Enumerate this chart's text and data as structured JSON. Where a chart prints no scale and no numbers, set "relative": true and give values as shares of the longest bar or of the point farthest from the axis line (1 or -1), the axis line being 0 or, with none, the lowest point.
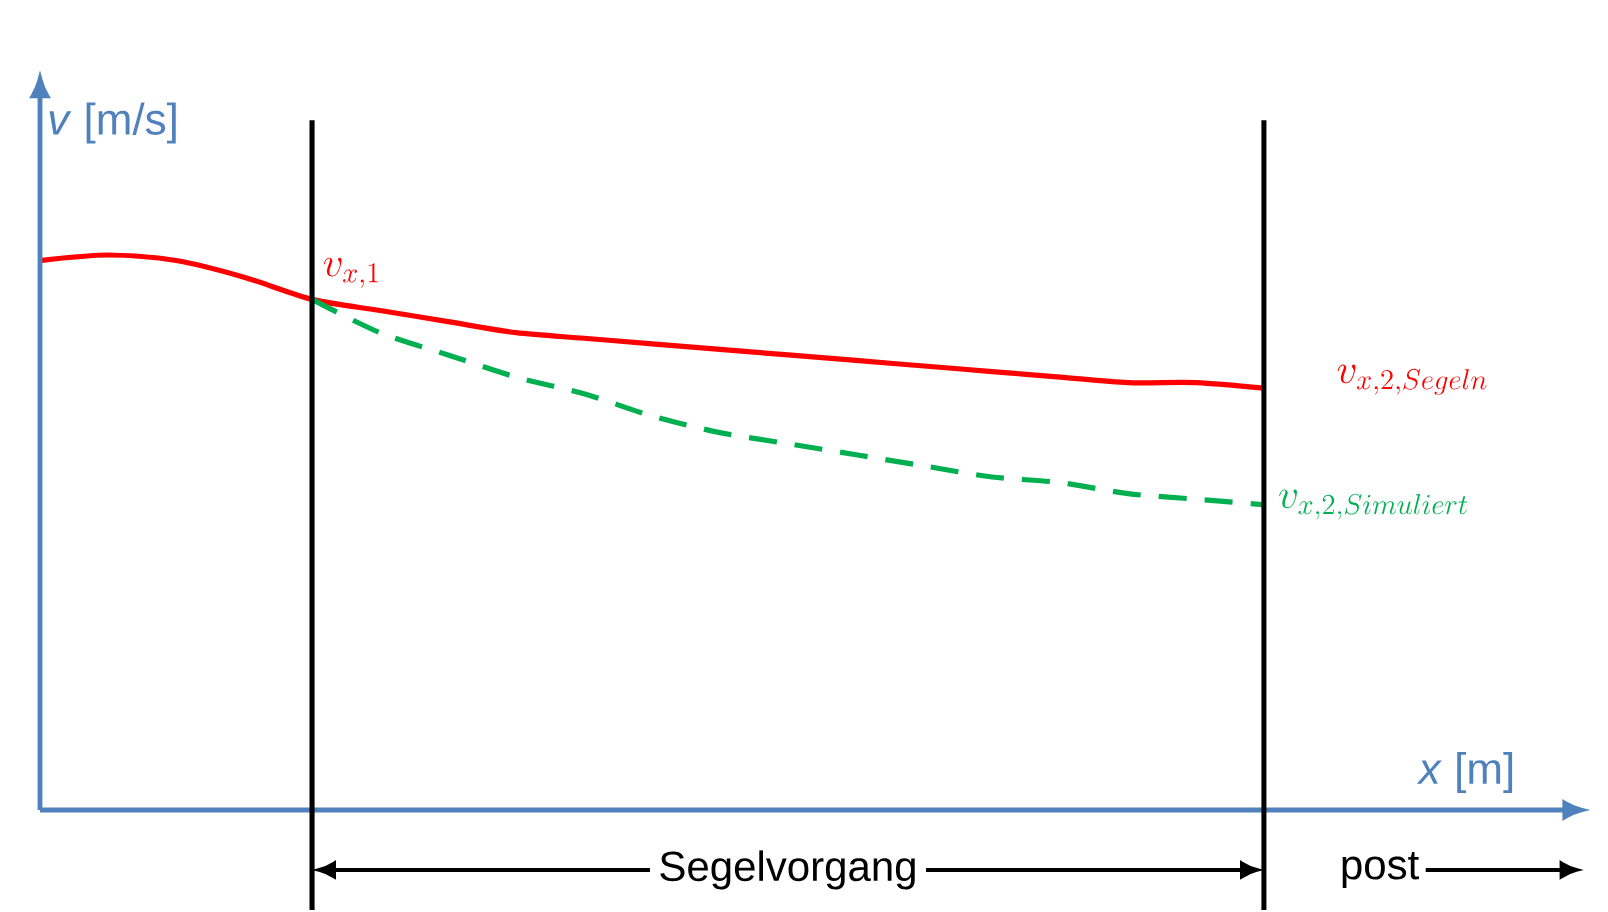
{
  "chart_data": {
    "type": "line",
    "relative": true,
    "xlabel": "*x* [m]",
    "ylabel": "*v* [m/s]",
    "categories": [
      null,
      null,
      null,
      null,
      null,
      null,
      null,
      null,
      null,
      null,
      null,
      null,
      null,
      null,
      null,
      null,
      null,
      null,
      null
    ],
    "series": [
      {
        "name": "v_{x,2,Segeln}",
        "color": "#ff0000",
        "line_style": "solid",
        "values": [
          0.99,
          1,
          0.99,
          0.96,
          0.92,
          0.9,
          0.88,
          0.86,
          0.85,
          0.84,
          0.83,
          0.82,
          0.81,
          0.8,
          0.79,
          0.78,
          0.77,
          0.77,
          0.76
        ]
      },
      {
        "name": "v_{x,2,Simuliert}",
        "color": "#00b050",
        "line_style": "dashed",
        "values": [
          null,
          null,
          null,
          null,
          0.92,
          0.86,
          0.82,
          0.78,
          0.75,
          0.71,
          0.68,
          0.66,
          0.64,
          0.62,
          0.6,
          0.59,
          0.57,
          0.56,
          0.55
        ]
      }
    ],
    "annotations": [
      "v_{x,1}",
      "Segelvorgang",
      "post"
    ],
    "marker": "none"
  }
}
